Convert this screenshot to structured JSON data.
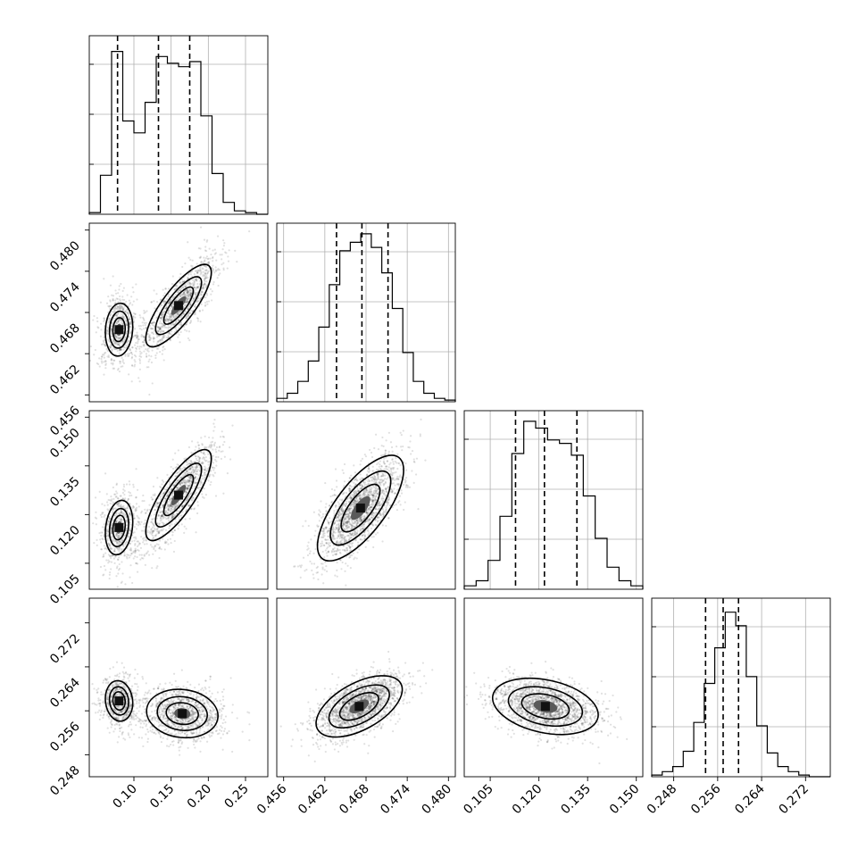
{
  "chart_data": {
    "type": "corner",
    "parameters": [
      {
        "range": [
          0.04,
          0.28
        ],
        "ticks": [
          0.1,
          0.15,
          0.2,
          0.25
        ],
        "tick_labels": [
          "0.10",
          "0.15",
          "0.20",
          "0.25"
        ],
        "quantiles": [
          0.078,
          0.133,
          0.175
        ]
      },
      {
        "range": [
          0.455,
          0.481
        ],
        "ticks": [
          0.456,
          0.462,
          0.468,
          0.474,
          0.48
        ],
        "tick_labels": [
          "0.456",
          "0.462",
          "0.468",
          "0.474",
          "0.480"
        ],
        "quantiles": [
          0.4637,
          0.4674,
          0.4712
        ]
      },
      {
        "range": [
          0.097,
          0.152
        ],
        "ticks": [
          0.105,
          0.12,
          0.135,
          0.15
        ],
        "tick_labels": [
          "0.105",
          "0.120",
          "0.135",
          "0.150"
        ],
        "quantiles": [
          0.1128,
          0.1217,
          0.1317
        ]
      },
      {
        "range": [
          0.244,
          0.2765
        ],
        "ticks": [
          0.248,
          0.256,
          0.264,
          0.272
        ],
        "tick_labels": [
          "0.248",
          "0.256",
          "0.264",
          "0.272"
        ],
        "quantiles": [
          0.2538,
          0.257,
          0.2598
        ]
      }
    ],
    "histograms": [
      [
        0.01,
        0.23,
        0.96,
        0.55,
        0.48,
        0.66,
        0.93,
        0.89,
        0.87,
        0.9,
        0.58,
        0.24,
        0.07,
        0.02,
        0.01,
        0.0
      ],
      [
        0.02,
        0.05,
        0.12,
        0.24,
        0.44,
        0.69,
        0.89,
        0.94,
        0.99,
        0.91,
        0.76,
        0.55,
        0.29,
        0.12,
        0.05,
        0.02,
        0.01
      ],
      [
        0.02,
        0.05,
        0.17,
        0.43,
        0.8,
        0.99,
        0.95,
        0.88,
        0.86,
        0.79,
        0.55,
        0.3,
        0.13,
        0.05,
        0.02
      ],
      [
        0.01,
        0.03,
        0.06,
        0.15,
        0.32,
        0.55,
        0.76,
        0.97,
        0.89,
        0.59,
        0.3,
        0.14,
        0.06,
        0.03,
        0.01,
        0.0,
        0.0
      ]
    ],
    "correlations": [
      {
        "row": 1,
        "col": 0,
        "components": [
          {
            "mean": [
              0.08,
              0.4655
            ],
            "sd": [
              0.011,
              0.0023
            ],
            "rho": 0.1,
            "weight": 0.35
          },
          {
            "mean": [
              0.16,
              0.469
            ],
            "sd": [
              0.022,
              0.003
            ],
            "rho": 0.8,
            "weight": 0.65
          }
        ]
      },
      {
        "row": 2,
        "col": 0,
        "components": [
          {
            "mean": [
              0.08,
              0.116
            ],
            "sd": [
              0.011,
              0.005
            ],
            "rho": 0.2,
            "weight": 0.35
          },
          {
            "mean": [
              0.16,
              0.126
            ],
            "sd": [
              0.022,
              0.007
            ],
            "rho": 0.8,
            "weight": 0.65
          }
        ]
      },
      {
        "row": 2,
        "col": 1,
        "components": [
          {
            "mean": [
              0.4672,
              0.122
            ],
            "sd": [
              0.0027,
              0.007
            ],
            "rho": 0.72,
            "weight": 1.0
          }
        ]
      },
      {
        "row": 3,
        "col": 0,
        "components": [
          {
            "mean": [
              0.08,
              0.2578
            ],
            "sd": [
              0.011,
              0.0022
            ],
            "rho": -0.1,
            "weight": 0.35
          },
          {
            "mean": [
              0.165,
              0.2555
            ],
            "sd": [
              0.024,
              0.0022
            ],
            "rho": -0.1,
            "weight": 0.65
          }
        ]
      },
      {
        "row": 3,
        "col": 1,
        "components": [
          {
            "mean": [
              0.467,
              0.2568
            ],
            "sd": [
              0.0027,
              0.0024
            ],
            "rho": 0.55,
            "weight": 1.0
          }
        ]
      },
      {
        "row": 3,
        "col": 2,
        "components": [
          {
            "mean": [
              0.122,
              0.2568
            ],
            "sd": [
              0.007,
              0.0022
            ],
            "rho": -0.3,
            "weight": 1.0
          }
        ]
      }
    ],
    "grid": true
  }
}
